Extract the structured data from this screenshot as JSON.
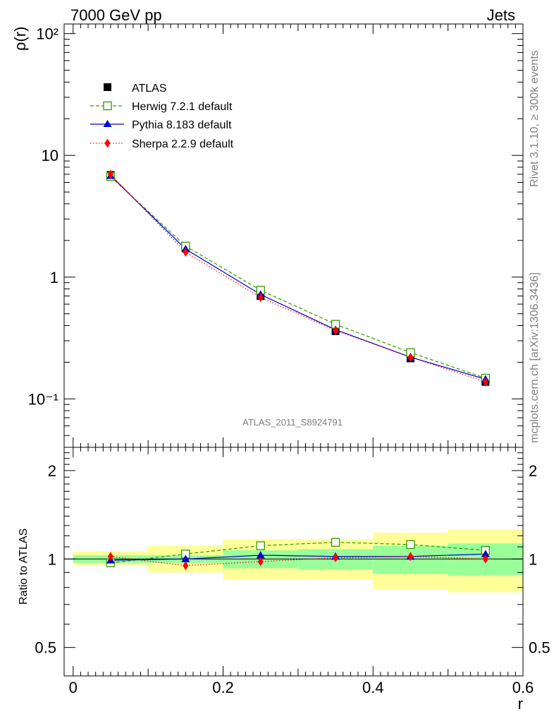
{
  "header": {
    "left": "7000 GeV pp",
    "right": "Jets"
  },
  "side_labels": {
    "rivet": "Rivet 3.1.10, ≥ 300k events",
    "mcplots": "mcplots.cern.ch [arXiv:1306.3436]"
  },
  "analysis_id": "ATLAS_2011_S8924791",
  "colors": {
    "atlas": "#000000",
    "herwig": "#339900",
    "pythia": "#0000cc",
    "sherpa": "#ff0000",
    "band_inner": "#99ff99",
    "band_outer": "#ffff99"
  },
  "chart_data": [
    {
      "type": "line",
      "panel": "main",
      "yscale": "log",
      "ylabel": "ρ(r)",
      "xlabel": "",
      "xlim": [
        -0.012,
        0.6
      ],
      "ylim": [
        0.04,
        120
      ],
      "ytick_labels": [
        "10⁻¹",
        "1",
        "10",
        "10²"
      ],
      "ytick_values": [
        0.1,
        1,
        10,
        100
      ],
      "x": [
        0.05,
        0.15,
        0.25,
        0.35,
        0.45,
        0.55
      ],
      "series": [
        {
          "name": "ATLAS",
          "key": "atlas",
          "marker": "square",
          "values": [
            6.9,
            1.72,
            0.7,
            0.36,
            0.215,
            0.138
          ],
          "draw_line": false
        },
        {
          "name": "Herwig 7.2.1 default",
          "key": "herwig",
          "marker": "open-square",
          "line": "dashed",
          "values": [
            6.7,
            1.8,
            0.78,
            0.41,
            0.24,
            0.148
          ]
        },
        {
          "name": "Pythia 8.183 default",
          "key": "pythia",
          "marker": "triangle",
          "line": "solid",
          "values": [
            6.8,
            1.7,
            0.72,
            0.37,
            0.22,
            0.145
          ]
        },
        {
          "name": "Sherpa 2.2.9 default",
          "key": "sherpa",
          "marker": "diamond",
          "line": "dotted",
          "values": [
            7.0,
            1.6,
            0.68,
            0.365,
            0.22,
            0.138
          ]
        }
      ],
      "legend_position": "top-left"
    },
    {
      "type": "line",
      "panel": "ratio",
      "yscale": "log",
      "ylabel": "Ratio to ATLAS",
      "xlabel": "r",
      "xlim": [
        -0.012,
        0.6
      ],
      "ylim": [
        0.4,
        2.4
      ],
      "ytick_labels": [
        "0.5",
        "1",
        "2"
      ],
      "ytick_values": [
        0.5,
        1,
        2
      ],
      "xtick_labels": [
        "0",
        "0.2",
        "0.4",
        "0.6"
      ],
      "xtick_values": [
        0,
        0.2,
        0.4,
        0.6
      ],
      "x": [
        0.05,
        0.15,
        0.25,
        0.35,
        0.45,
        0.55
      ],
      "bins": [
        [
          0.0,
          0.1
        ],
        [
          0.1,
          0.2
        ],
        [
          0.2,
          0.3
        ],
        [
          0.3,
          0.4
        ],
        [
          0.4,
          0.5
        ],
        [
          0.5,
          0.6
        ]
      ],
      "band_inner": [
        [
          0.97,
          1.03
        ],
        [
          0.97,
          1.03
        ],
        [
          0.93,
          1.07
        ],
        [
          0.92,
          1.08
        ],
        [
          0.89,
          1.11
        ],
        [
          0.88,
          1.13
        ]
      ],
      "band_outer": [
        [
          0.95,
          1.06
        ],
        [
          0.9,
          1.11
        ],
        [
          0.85,
          1.17
        ],
        [
          0.85,
          1.17
        ],
        [
          0.79,
          1.23
        ],
        [
          0.77,
          1.26
        ]
      ],
      "series": [
        {
          "name": "Herwig 7.2.1 default",
          "key": "herwig",
          "marker": "open-square",
          "line": "dashed",
          "values": [
            0.97,
            1.04,
            1.11,
            1.14,
            1.12,
            1.07
          ]
        },
        {
          "name": "Pythia 8.183 default",
          "key": "pythia",
          "marker": "triangle",
          "line": "solid",
          "values": [
            0.99,
            1.0,
            1.03,
            1.02,
            1.02,
            1.04
          ]
        },
        {
          "name": "Sherpa 2.2.9 default",
          "key": "sherpa",
          "marker": "diamond",
          "line": "dotted",
          "values": [
            1.02,
            0.95,
            0.98,
            1.01,
            1.02,
            1.0
          ]
        }
      ]
    }
  ]
}
